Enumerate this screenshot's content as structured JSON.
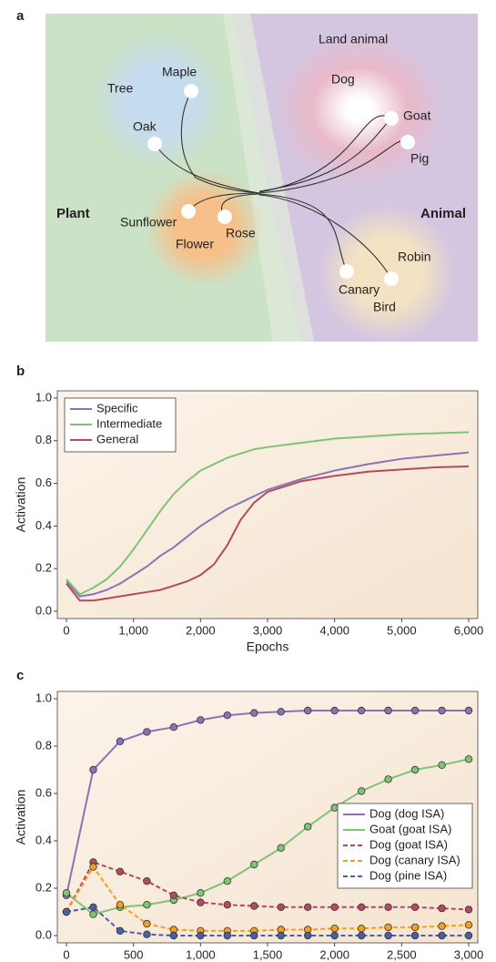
{
  "diagram": {
    "panel_label": "a",
    "labels": {
      "plant": "Plant",
      "animal": "Animal",
      "land_animal": "Land animal",
      "tree": "Tree",
      "maple": "Maple",
      "oak": "Oak",
      "sunflower": "Sunflower",
      "flower": "Flower",
      "rose": "Rose",
      "dog": "Dog",
      "goat": "Goat",
      "pig": "Pig",
      "canary": "Canary",
      "robin": "Robin",
      "bird": "Bird"
    }
  },
  "chart_data": [
    {
      "type": "line",
      "panel_label": "b",
      "xlabel": "Epochs",
      "ylabel": "Activation",
      "x": [
        0,
        200,
        400,
        600,
        800,
        1000,
        1200,
        1400,
        1600,
        1800,
        2000,
        2200,
        2400,
        2600,
        2800,
        3000,
        3500,
        4000,
        4500,
        5000,
        5500,
        6000
      ],
      "series": [
        {
          "name": "Specific",
          "color": "#8a72b5",
          "values": [
            0.14,
            0.07,
            0.08,
            0.1,
            0.13,
            0.17,
            0.21,
            0.26,
            0.3,
            0.35,
            0.4,
            0.44,
            0.48,
            0.51,
            0.54,
            0.57,
            0.62,
            0.66,
            0.69,
            0.715,
            0.73,
            0.745
          ]
        },
        {
          "name": "Intermediate",
          "color": "#7fc473",
          "values": [
            0.15,
            0.08,
            0.11,
            0.15,
            0.21,
            0.29,
            0.38,
            0.47,
            0.55,
            0.61,
            0.66,
            0.69,
            0.72,
            0.74,
            0.76,
            0.77,
            0.79,
            0.81,
            0.82,
            0.83,
            0.835,
            0.84
          ]
        },
        {
          "name": "General",
          "color": "#b24a62",
          "values": [
            0.13,
            0.05,
            0.05,
            0.06,
            0.07,
            0.08,
            0.09,
            0.1,
            0.12,
            0.14,
            0.17,
            0.22,
            0.31,
            0.43,
            0.51,
            0.56,
            0.61,
            0.635,
            0.655,
            0.665,
            0.675,
            0.68
          ]
        }
      ],
      "xlim": [
        0,
        6000
      ],
      "ylim": [
        0,
        1
      ],
      "xticks": [
        0,
        {
          "value": 1000,
          "label": "1,000"
        },
        {
          "value": 2000,
          "label": "2,000"
        },
        {
          "value": 3000,
          "label": "3,000"
        },
        {
          "value": 4000,
          "label": "4,000"
        },
        {
          "value": 5000,
          "label": "5,000"
        },
        {
          "value": 6000,
          "label": "6,000"
        }
      ],
      "yticks": [
        {
          "value": 0,
          "label": "0.0"
        },
        0.2,
        0.4,
        0.6,
        0.8,
        {
          "value": 1,
          "label": "1.0"
        }
      ],
      "legend": "upper left",
      "markers": false
    },
    {
      "type": "line",
      "panel_label": "c",
      "xlabel": "Epochs",
      "ylabel": "Activation",
      "x": [
        0,
        200,
        400,
        600,
        800,
        1000,
        1200,
        1400,
        1600,
        1800,
        2000,
        2200,
        2400,
        2600,
        2800,
        3000
      ],
      "series": [
        {
          "name": "Dog (dog ISA)",
          "color": "#8a72b5",
          "dash": false,
          "values": [
            0.17,
            0.7,
            0.82,
            0.86,
            0.88,
            0.91,
            0.93,
            0.94,
            0.945,
            0.95,
            0.95,
            0.95,
            0.95,
            0.95,
            0.95,
            0.95
          ]
        },
        {
          "name": "Goat (goat ISA)",
          "color": "#7fc473",
          "dash": false,
          "values": [
            0.18,
            0.09,
            0.12,
            0.13,
            0.15,
            0.18,
            0.23,
            0.3,
            0.37,
            0.46,
            0.54,
            0.61,
            0.66,
            0.7,
            0.72,
            0.745
          ]
        },
        {
          "name": "Dog (goat ISA)",
          "color": "#b24a62",
          "dash": true,
          "values": [
            0.1,
            0.31,
            0.27,
            0.23,
            0.17,
            0.14,
            0.13,
            0.125,
            0.12,
            0.12,
            0.12,
            0.12,
            0.12,
            0.12,
            0.115,
            0.11
          ]
        },
        {
          "name": "Dog (canary ISA)",
          "color": "#f0a020",
          "dash": true,
          "values": [
            0.1,
            0.29,
            0.13,
            0.05,
            0.025,
            0.02,
            0.02,
            0.02,
            0.025,
            0.025,
            0.03,
            0.03,
            0.035,
            0.035,
            0.04,
            0.045
          ]
        },
        {
          "name": "Dog (pine ISA)",
          "color": "#4a5fa8",
          "dash": true,
          "values": [
            0.1,
            0.12,
            0.02,
            0.005,
            0,
            0,
            0,
            0,
            0,
            0,
            0,
            0,
            0,
            0,
            0,
            0
          ]
        }
      ],
      "xlim": [
        0,
        3000
      ],
      "ylim": [
        0,
        1
      ],
      "xticks": [
        0,
        500,
        {
          "value": 1000,
          "label": "1,000"
        },
        {
          "value": 1500,
          "label": "1,500"
        },
        {
          "value": 2000,
          "label": "2,000"
        },
        {
          "value": 2500,
          "label": "2,500"
        },
        {
          "value": 3000,
          "label": "3,000"
        }
      ],
      "yticks": [
        {
          "value": 0,
          "label": "0.0"
        },
        0.2,
        0.4,
        0.6,
        0.8,
        {
          "value": 1,
          "label": "1.0"
        }
      ],
      "legend": "lower right",
      "markers": true
    }
  ]
}
